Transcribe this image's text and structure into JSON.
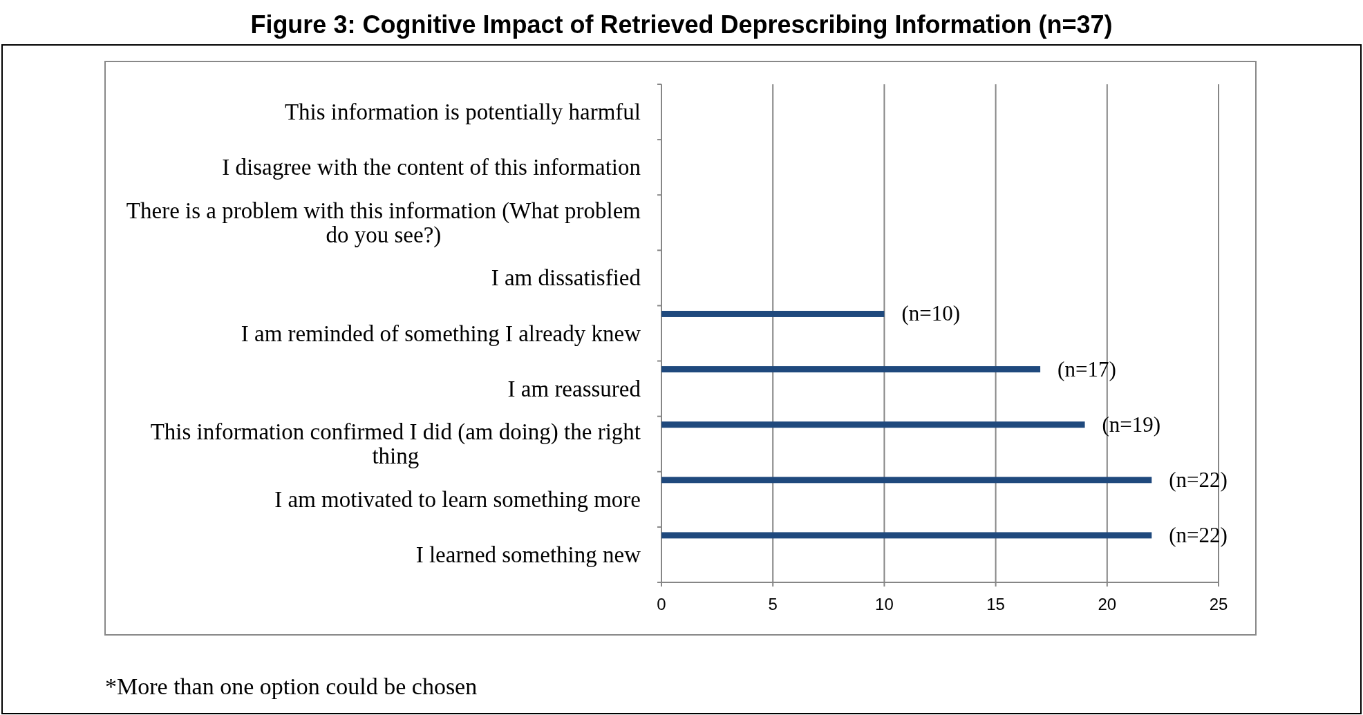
{
  "chart_data": {
    "type": "bar",
    "orientation": "horizontal",
    "title": "Figure 3: Cognitive Impact of Retrieved Deprescribing Information (n=37)",
    "categories": [
      "This information is potentially harmful",
      "I disagree with the content of this information",
      "There is a problem with this information (What problem do you see?)",
      "I am dissatisfied",
      "I am reminded of something I already knew",
      "I am reassured",
      "This information confirmed I did (am doing) the right thing",
      "I am motivated to learn something more",
      "I learned something new"
    ],
    "values": [
      0,
      0,
      0,
      0,
      10,
      17,
      19,
      22,
      22
    ],
    "value_labels": [
      null,
      null,
      null,
      null,
      "(n=10)",
      "(n=17)",
      "(n=19)",
      "(n=22)",
      "(n=22)"
    ],
    "color": "#1f497d",
    "xlim": [
      0,
      25
    ],
    "xticks": [
      0,
      5,
      10,
      15,
      20,
      25
    ],
    "grid": "x",
    "annotations": [
      "*More than one option could be chosen"
    ]
  }
}
